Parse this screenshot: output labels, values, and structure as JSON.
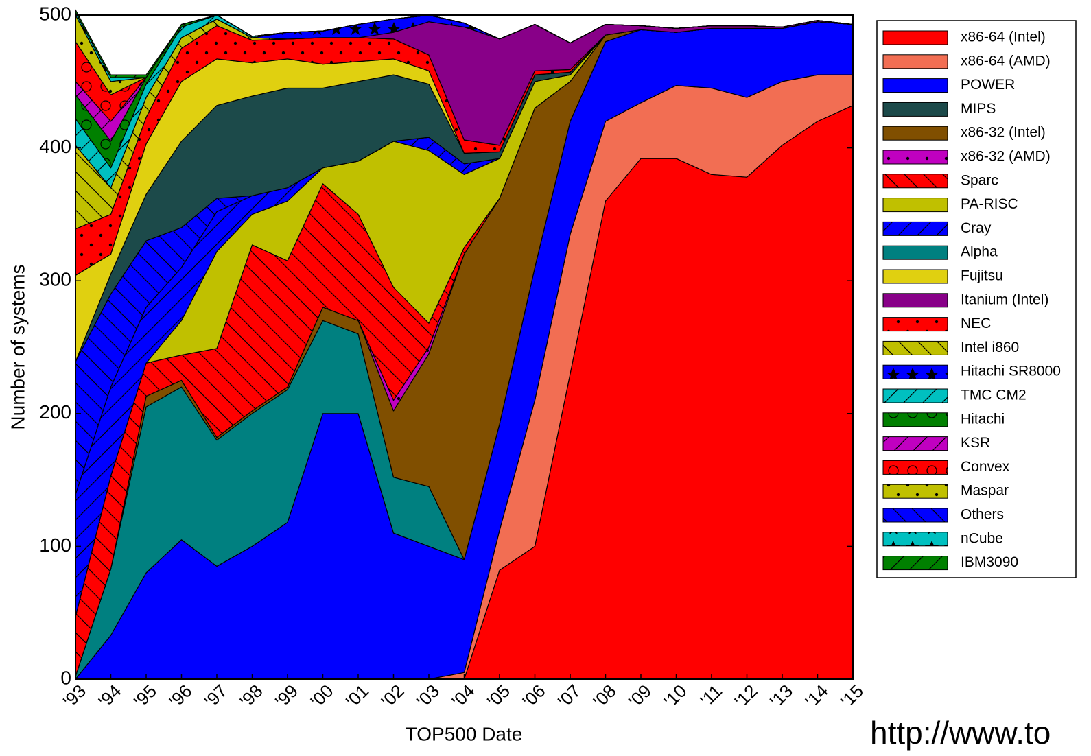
{
  "chart_data": {
    "type": "stacked_area",
    "x_label": "TOP500 Date",
    "y_label": "Number of systems",
    "source_text": "http://www.to",
    "x": [
      1993,
      1994,
      1995,
      1996,
      1997,
      1998,
      1999,
      2000,
      2001,
      2002,
      2003,
      2004,
      2005,
      2006,
      2007,
      2008,
      2009,
      2010,
      2011,
      2012,
      2013,
      2014,
      2015
    ],
    "xlim": [
      1993,
      2015
    ],
    "xticks": [
      {
        "value": 1993,
        "label": "'93"
      },
      {
        "value": 1994,
        "label": "'94"
      },
      {
        "value": 1995,
        "label": "'95"
      },
      {
        "value": 1996,
        "label": "'96"
      },
      {
        "value": 1997,
        "label": "'97"
      },
      {
        "value": 1998,
        "label": "'98"
      },
      {
        "value": 1999,
        "label": "'99"
      },
      {
        "value": 2000,
        "label": "'00"
      },
      {
        "value": 2001,
        "label": "'01"
      },
      {
        "value": 2002,
        "label": "'02"
      },
      {
        "value": 2003,
        "label": "'03"
      },
      {
        "value": 2004,
        "label": "'04"
      },
      {
        "value": 2005,
        "label": "'05"
      },
      {
        "value": 2006,
        "label": "'06"
      },
      {
        "value": 2007,
        "label": "'07"
      },
      {
        "value": 2008,
        "label": "'08"
      },
      {
        "value": 2009,
        "label": "'09"
      },
      {
        "value": 2010,
        "label": "'10"
      },
      {
        "value": 2011,
        "label": "'11"
      },
      {
        "value": 2012,
        "label": "'12"
      },
      {
        "value": 2013,
        "label": "'13"
      },
      {
        "value": 2014,
        "label": "'14"
      },
      {
        "value": 2015,
        "label": "'15"
      }
    ],
    "ylim": [
      0,
      500
    ],
    "yticks": [
      0,
      100,
      200,
      300,
      400,
      500
    ],
    "legend": "right",
    "series": [
      {
        "name": "x86-64 (Intel)",
        "color": "#ff0000",
        "values": [
          0,
          0,
          0,
          0,
          0,
          0,
          0,
          0,
          0,
          0,
          0,
          0,
          82,
          100,
          230,
          360,
          392,
          392,
          380,
          378,
          402,
          420,
          432
        ]
      },
      {
        "name": "x86-64 (AMD)",
        "color": "#f26e53",
        "values": [
          0,
          0,
          0,
          0,
          0,
          0,
          0,
          0,
          0,
          0,
          0,
          5,
          30,
          110,
          105,
          60,
          42,
          55,
          65,
          60,
          48,
          35,
          23
        ]
      },
      {
        "name": "POWER",
        "color": "#0000ff",
        "values": [
          0,
          33,
          80,
          105,
          85,
          100,
          118,
          200,
          200,
          110,
          100,
          85,
          80,
          100,
          85,
          60,
          55,
          40,
          45,
          52,
          40,
          40,
          38
        ]
      },
      {
        "name": "MIPS",
        "color": "#1c4a4a",
        "values": [
          0,
          15,
          35,
          65,
          70,
          75,
          75,
          60,
          60,
          50,
          40,
          8,
          5,
          5,
          2,
          0,
          0,
          0,
          0,
          0,
          0,
          0,
          0
        ]
      },
      {
        "name": "x86-32 (Intel)",
        "color": "#804f00",
        "values": [
          0,
          0,
          8,
          5,
          2,
          2,
          2,
          10,
          10,
          50,
          100,
          230,
          170,
          120,
          30,
          5,
          0,
          0,
          0,
          0,
          0,
          0,
          0
        ]
      },
      {
        "name": "x86-32 (AMD)",
        "color": "#c000c0",
        "hatch": "dots",
        "values": [
          0,
          0,
          0,
          0,
          0,
          0,
          0,
          0,
          0,
          8,
          5,
          0,
          0,
          0,
          0,
          0,
          0,
          0,
          0,
          0,
          0,
          0,
          0
        ]
      },
      {
        "name": "Sparc",
        "color": "#ff0000",
        "hatch": "backslash",
        "values": [
          45,
          70,
          25,
          19,
          67,
          125,
          95,
          93,
          80,
          85,
          18,
          5,
          0,
          0,
          0,
          0,
          0,
          0,
          0,
          0,
          0,
          0,
          0
        ]
      },
      {
        "name": "PA-RISC",
        "color": "#c0c000",
        "values": [
          0,
          0,
          0,
          26,
          73,
          23,
          45,
          12,
          40,
          110,
          130,
          55,
          30,
          20,
          5,
          0,
          0,
          0,
          0,
          0,
          0,
          0,
          0
        ]
      },
      {
        "name": "Cray",
        "color": "#0000ff",
        "hatch": "slash",
        "values": [
          92,
          67,
          42,
          40,
          30,
          14,
          10,
          0,
          0,
          0,
          10,
          8,
          0,
          0,
          0,
          0,
          0,
          0,
          0,
          0,
          0,
          0,
          0
        ]
      },
      {
        "name": "Alpha",
        "color": "#008080",
        "values": [
          2,
          50,
          125,
          115,
          95,
          100,
          100,
          70,
          60,
          42,
          45,
          0,
          0,
          0,
          0,
          0,
          0,
          0,
          0,
          0,
          0,
          0,
          0
        ]
      },
      {
        "name": "Fujitsu",
        "color": "#e0d010",
        "values": [
          65,
          15,
          38,
          45,
          35,
          25,
          22,
          18,
          15,
          12,
          10,
          0,
          0,
          0,
          0,
          0,
          0,
          0,
          0,
          0,
          0,
          0,
          0
        ]
      },
      {
        "name": "Itanium (Intel)",
        "color": "#880088",
        "values": [
          0,
          0,
          0,
          0,
          0,
          0,
          0,
          0,
          0,
          5,
          25,
          85,
          80,
          35,
          20,
          8,
          3,
          3,
          2,
          2,
          1,
          1,
          0
        ]
      },
      {
        "name": "NEC",
        "color": "#ff0000",
        "hatch": "dots",
        "values": [
          35,
          30,
          20,
          25,
          25,
          17,
          15,
          20,
          18,
          15,
          12,
          10,
          5,
          3,
          2,
          0,
          0,
          0,
          0,
          0,
          0,
          0,
          0
        ]
      },
      {
        "name": "Intel i860",
        "color": "#c0c000",
        "hatch": "backslash",
        "values": [
          63,
          20,
          15,
          8,
          5,
          2,
          0,
          0,
          0,
          0,
          0,
          0,
          0,
          0,
          0,
          0,
          0,
          0,
          0,
          0,
          0,
          0,
          0
        ]
      },
      {
        "name": "Hitachi SR8000",
        "color": "#0000ff",
        "hatch": "stars",
        "values": [
          0,
          0,
          0,
          0,
          0,
          0,
          5,
          5,
          10,
          10,
          5,
          3,
          0,
          0,
          0,
          0,
          0,
          0,
          0,
          0,
          0,
          0,
          0
        ]
      },
      {
        "name": "TMC CM2",
        "color": "#00c0c0",
        "hatch": "slash",
        "values": [
          20,
          15,
          10,
          8,
          3,
          1,
          0,
          0,
          0,
          0,
          0,
          0,
          0,
          0,
          0,
          0,
          0,
          0,
          0,
          0,
          0,
          0,
          0
        ]
      },
      {
        "name": "Hitachi",
        "color": "#008000",
        "hatch": "circles",
        "values": [
          18,
          20,
          5,
          2,
          0,
          0,
          0,
          0,
          0,
          0,
          0,
          0,
          0,
          0,
          0,
          0,
          0,
          0,
          0,
          0,
          0,
          0,
          0
        ]
      },
      {
        "name": "KSR",
        "color": "#c000c0",
        "hatch": "slash",
        "values": [
          10,
          15,
          0,
          0,
          0,
          0,
          0,
          0,
          0,
          0,
          0,
          0,
          0,
          0,
          0,
          0,
          0,
          0,
          0,
          0,
          0,
          0,
          0
        ]
      },
      {
        "name": "Convex",
        "color": "#ff0000",
        "hatch": "circles",
        "values": [
          30,
          20,
          0,
          0,
          0,
          0,
          0,
          0,
          0,
          0,
          0,
          0,
          0,
          0,
          0,
          0,
          0,
          0,
          0,
          0,
          0,
          0,
          0
        ]
      },
      {
        "name": "Maspar",
        "color": "#c0c000",
        "hatch": "dots",
        "values": [
          20,
          10,
          0,
          0,
          0,
          0,
          0,
          0,
          0,
          0,
          0,
          0,
          0,
          0,
          0,
          0,
          0,
          0,
          0,
          0,
          0,
          0,
          0
        ]
      },
      {
        "name": "Others",
        "color": "#0000ff",
        "hatch": "backslash",
        "values": [
          100,
          70,
          50,
          30,
          10,
          0,
          0,
          0,
          0,
          0,
          0,
          0,
          0,
          0,
          0,
          0,
          0,
          0,
          0,
          0,
          0,
          0,
          0
        ]
      },
      {
        "name": "nCube",
        "color": "#00c0c0",
        "hatch": "stars",
        "values": [
          2,
          3,
          0,
          0,
          0,
          0,
          0,
          0,
          0,
          0,
          0,
          0,
          0,
          0,
          0,
          0,
          0,
          0,
          0,
          0,
          0,
          0,
          0
        ]
      },
      {
        "name": "IBM3090",
        "color": "#008000",
        "hatch": "slash",
        "values": [
          2,
          2,
          2,
          0,
          0,
          0,
          0,
          0,
          0,
          0,
          0,
          0,
          0,
          0,
          0,
          0,
          0,
          0,
          0,
          0,
          0,
          0,
          0
        ]
      }
    ]
  }
}
